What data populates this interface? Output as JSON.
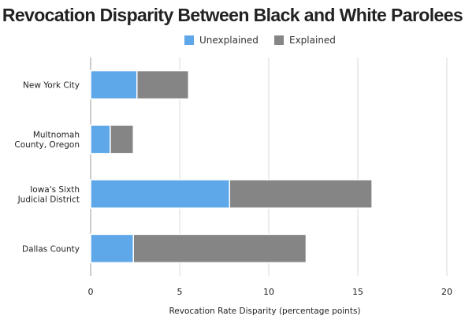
{
  "chart_data": {
    "type": "bar",
    "orientation": "horizontal",
    "stacked": true,
    "title": "Revocation Disparity Between Black and White Parolees",
    "xlabel": "Revocation Rate Disparity (percentage points)",
    "ylabel": "",
    "xlim": [
      0,
      20
    ],
    "xticks": [
      0,
      5,
      10,
      15,
      20
    ],
    "grid": true,
    "legend_position": "top",
    "categories": [
      [
        "New York City"
      ],
      [
        "Multnomah",
        "County, Oregon"
      ],
      [
        "Iowa's Sixth",
        "Judicial District"
      ],
      [
        "Dallas County"
      ]
    ],
    "series": [
      {
        "name": "Unexplained",
        "color": "#5ea8e9",
        "values": [
          2.6,
          1.1,
          7.8,
          2.4
        ]
      },
      {
        "name": "Explained",
        "color": "#858585",
        "values": [
          2.9,
          1.3,
          8.0,
          9.7
        ]
      }
    ]
  }
}
